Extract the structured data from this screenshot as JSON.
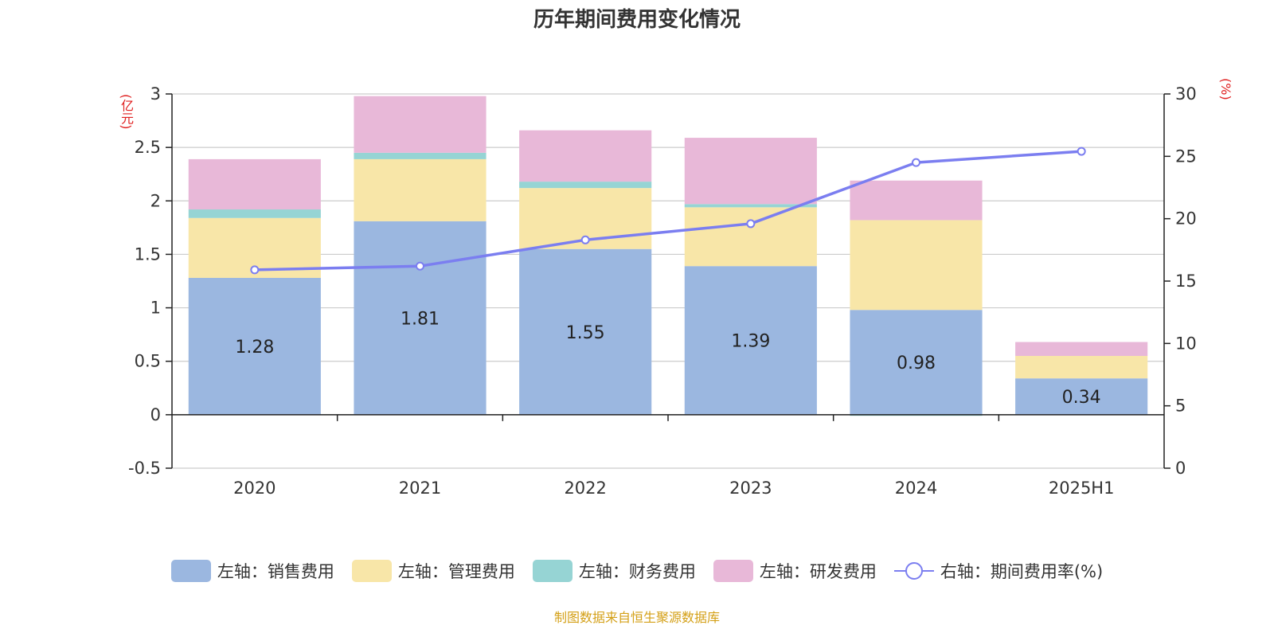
{
  "chart_data": {
    "type": "bar",
    "stacked": true,
    "title": "历年期间费用变化情况",
    "categories": [
      "2020",
      "2021",
      "2022",
      "2023",
      "2024",
      "2025H1"
    ],
    "left_axis": {
      "unit": "(亿元)",
      "ylim": [
        -0.5,
        3
      ],
      "ticks": [
        "-0.5",
        "0",
        "0.5",
        "1",
        "1.5",
        "2",
        "2.5",
        "3"
      ]
    },
    "right_axis": {
      "unit": "(%)",
      "ylim": [
        0,
        30
      ],
      "ticks": [
        "0",
        "5",
        "10",
        "15",
        "20",
        "25",
        "30"
      ]
    },
    "series": [
      {
        "name": "左轴：销售费用",
        "type": "bar",
        "axis": "left",
        "color": "#9bb7e0",
        "values": [
          1.28,
          1.81,
          1.55,
          1.39,
          0.98,
          0.34
        ],
        "labels": [
          "1.28",
          "1.81",
          "1.55",
          "1.39",
          "0.98",
          "0.34"
        ]
      },
      {
        "name": "左轴：管理费用",
        "type": "bar",
        "axis": "left",
        "color": "#f8e6a8",
        "values": [
          0.56,
          0.58,
          0.57,
          0.55,
          0.84,
          0.21
        ]
      },
      {
        "name": "左轴：财务费用",
        "type": "bar",
        "axis": "left",
        "color": "#96d4d4",
        "values": [
          0.08,
          0.06,
          0.06,
          0.03,
          -0.01,
          0.0
        ]
      },
      {
        "name": "左轴：研发费用",
        "type": "bar",
        "axis": "left",
        "color": "#e8b8d8",
        "values": [
          0.47,
          0.53,
          0.48,
          0.62,
          0.37,
          0.13
        ]
      },
      {
        "name": "右轴：期间费用率(%)",
        "type": "line",
        "axis": "right",
        "color": "#7b7ef0",
        "values": [
          15.9,
          16.2,
          18.3,
          19.6,
          24.5,
          25.4
        ]
      }
    ],
    "grid": true,
    "legend_position": "bottom"
  },
  "source_note": "制图数据来自恒生聚源数据库"
}
